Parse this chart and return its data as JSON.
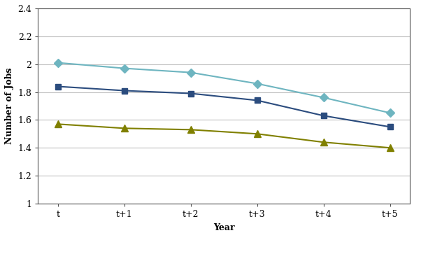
{
  "x_labels": [
    "t",
    "t+1",
    "t+2",
    "t+3",
    "t+4",
    "t+5"
  ],
  "series": {
    "Low-Income Single Mothers": {
      "values": [
        2.01,
        1.97,
        1.94,
        1.86,
        1.76,
        1.65
      ],
      "color": "#6EB5C0",
      "marker": "D",
      "markersize": 6,
      "linewidth": 1.5
    },
    "All Single Mothers": {
      "values": [
        1.84,
        1.81,
        1.79,
        1.74,
        1.63,
        1.55
      ],
      "color": "#2B4C7E",
      "marker": "s",
      "markersize": 6,
      "linewidth": 1.5
    },
    "All Women": {
      "values": [
        1.57,
        1.54,
        1.53,
        1.5,
        1.44,
        1.4
      ],
      "color": "#808000",
      "marker": "^",
      "markersize": 7,
      "linewidth": 1.5
    }
  },
  "xlabel": "Year",
  "ylabel": "Number of Jobs",
  "ylim": [
    1.0,
    2.4
  ],
  "ytick_values": [
    1.0,
    1.2,
    1.4,
    1.6,
    1.8,
    2.0,
    2.2,
    2.4
  ],
  "ytick_labels": [
    "1",
    "1.2",
    "1.4",
    "1.6",
    "1.8",
    "2",
    "2.2",
    "2.4"
  ],
  "background_color": "#FFFFFF",
  "grid_color": "#C0C0C0",
  "axis_label_fontsize": 9,
  "tick_fontsize": 9,
  "legend_fontsize": 9
}
